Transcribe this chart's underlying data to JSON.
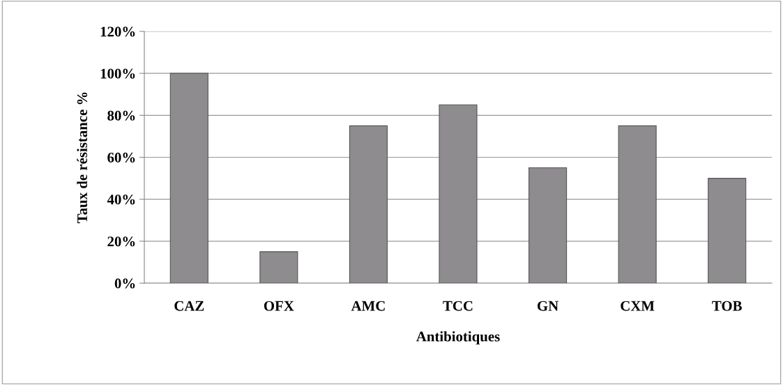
{
  "chart_data": {
    "type": "bar",
    "xlabel": "Antibiotiques",
    "ylabel": "Taux de résistance %",
    "categories": [
      "CAZ",
      "OFX",
      "AMC",
      "TCC",
      "GN",
      "CXM",
      "TOB"
    ],
    "values": [
      100,
      15,
      75,
      85,
      55,
      75,
      50
    ],
    "color": "#8e8c8e",
    "ylim": [
      0,
      120
    ],
    "yticks": [
      {
        "value": 0,
        "label": "0%"
      },
      {
        "value": 20,
        "label": "20%"
      },
      {
        "value": 40,
        "label": "40%"
      },
      {
        "value": 60,
        "label": "60%"
      },
      {
        "value": 80,
        "label": "80%"
      },
      {
        "value": 100,
        "label": "100%"
      },
      {
        "value": 120,
        "label": "120%"
      }
    ],
    "grid": "y"
  }
}
